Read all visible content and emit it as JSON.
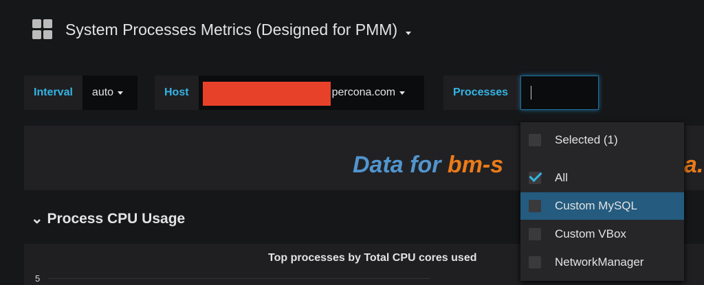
{
  "header": {
    "title": "System Processes Metrics (Designed for PMM)"
  },
  "variables": [
    {
      "label": "Interval",
      "value": "auto"
    },
    {
      "label": "Host",
      "value": "percona.com"
    },
    {
      "label": "Processes"
    }
  ],
  "banner": {
    "prefix": "Data for",
    "host": "bm-s",
    "tail": "a.i"
  },
  "row": {
    "title": "Process CPU Usage"
  },
  "panel": {
    "title": "Top processes by Total CPU cores used",
    "yticks": [
      5
    ]
  },
  "dropdown": {
    "selected": "Selected (1)",
    "options": [
      "All",
      "Custom MySQL",
      "Custom VBox",
      "NetworkManager"
    ],
    "checked": 0,
    "highlighted": 1
  }
}
